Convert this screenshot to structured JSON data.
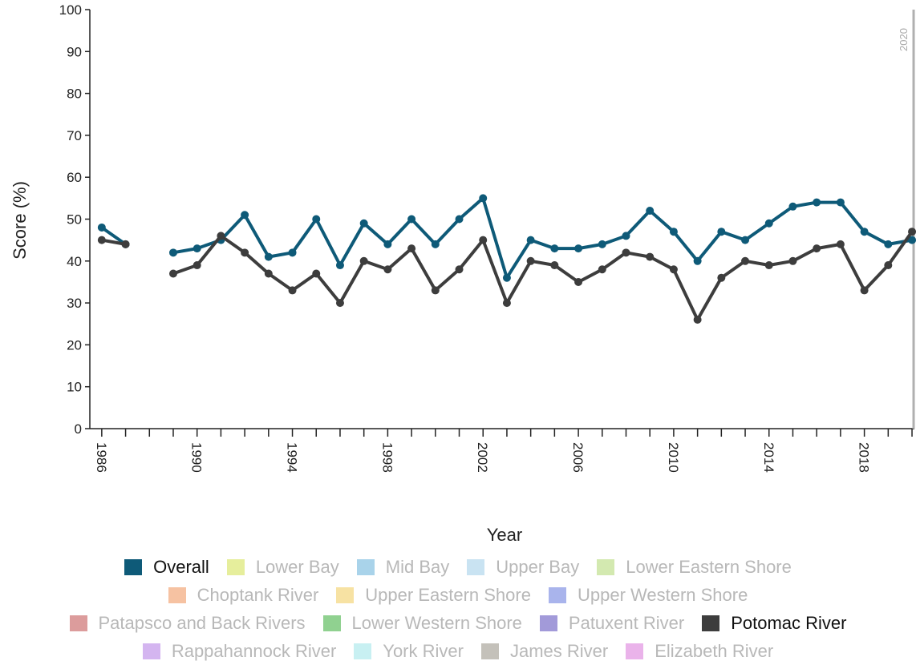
{
  "chart_data": {
    "type": "line",
    "xlabel": "Year",
    "ylabel": "Score (%)",
    "ylim": [
      0,
      100
    ],
    "yticks": [
      0,
      10,
      20,
      30,
      40,
      50,
      60,
      70,
      80,
      90,
      100
    ],
    "xlim": [
      1985.5,
      2020.1
    ],
    "xtick_labels": [
      "1986",
      "1990",
      "1994",
      "1998",
      "2002",
      "2006",
      "2010",
      "2014",
      "2018"
    ],
    "marker": {
      "year": 2020,
      "label": "2020"
    },
    "x": [
      1986,
      1987,
      1988,
      1989,
      1990,
      1991,
      1992,
      1993,
      1994,
      1995,
      1996,
      1997,
      1998,
      1999,
      2000,
      2001,
      2002,
      2003,
      2004,
      2005,
      2006,
      2007,
      2008,
      2009,
      2010,
      2011,
      2012,
      2013,
      2014,
      2015,
      2016,
      2017,
      2018,
      2019,
      2020
    ],
    "series": [
      {
        "name": "Overall",
        "color": "#0e5a78",
        "values": [
          48,
          44,
          null,
          42,
          43,
          45,
          51,
          41,
          42,
          50,
          39,
          49,
          44,
          50,
          44,
          50,
          55,
          36,
          45,
          43,
          43,
          44,
          46,
          52,
          47,
          40,
          47,
          45,
          49,
          53,
          54,
          54,
          47,
          44,
          45
        ]
      },
      {
        "name": "Potomac River",
        "color": "#3d3d3d",
        "values": [
          45,
          44,
          null,
          37,
          39,
          46,
          42,
          37,
          33,
          37,
          30,
          40,
          38,
          43,
          33,
          38,
          45,
          30,
          40,
          39,
          35,
          38,
          42,
          41,
          38,
          26,
          36,
          40,
          39,
          40,
          43,
          44,
          33,
          39,
          47
        ]
      }
    ],
    "legend_placement": "bottom",
    "grid": false
  },
  "legend": {
    "rows": [
      [
        {
          "label": "Overall",
          "color": "#0e5a78",
          "active": true
        },
        {
          "label": "Lower Bay",
          "color": "#e6ee9c",
          "active": false
        },
        {
          "label": "Mid Bay",
          "color": "#a9d3ea",
          "active": false
        },
        {
          "label": "Upper Bay",
          "color": "#c9e3f2",
          "active": false
        },
        {
          "label": "Lower Eastern Shore",
          "color": "#d3e9b0",
          "active": false
        }
      ],
      [
        {
          "label": "Choptank River",
          "color": "#f6c2a2",
          "active": false
        },
        {
          "label": "Upper Eastern Shore",
          "color": "#f7e2a3",
          "active": false
        },
        {
          "label": "Upper Western Shore",
          "color": "#a9b4ec",
          "active": false
        }
      ],
      [
        {
          "label": "Patapsco and Back Rivers",
          "color": "#dc9c9c",
          "active": false
        },
        {
          "label": "Lower Western Shore",
          "color": "#90d190",
          "active": false
        },
        {
          "label": "Patuxent River",
          "color": "#a29ad9",
          "active": false
        },
        {
          "label": "Potomac River",
          "color": "#3d3d3d",
          "active": true
        }
      ],
      [
        {
          "label": "Rappahannock River",
          "color": "#d4b5f0",
          "active": false
        },
        {
          "label": "York River",
          "color": "#c8f0f2",
          "active": false
        },
        {
          "label": "James River",
          "color": "#c4c1ba",
          "active": false
        },
        {
          "label": "Elizabeth River",
          "color": "#eab3ea",
          "active": false
        }
      ]
    ]
  }
}
